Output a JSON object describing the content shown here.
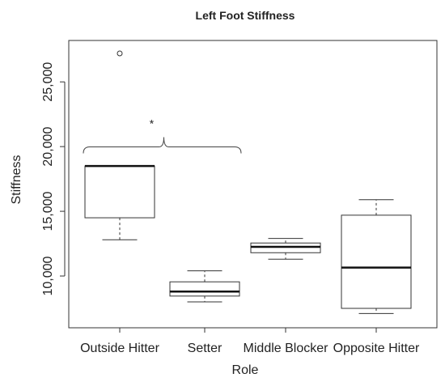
{
  "chart_data": {
    "type": "box",
    "title": "Left Foot Stiffness",
    "xlabel": "Role",
    "ylabel": "Stiffness",
    "categories": [
      "Outside Hitter",
      "Setter",
      "Middle Blocker",
      "Opposite Hitter"
    ],
    "yticks": [
      10000,
      15000,
      20000,
      25000
    ],
    "ytick_labels": [
      "10,000",
      "15,000",
      "20,000",
      "25,000"
    ],
    "ylim": [
      6000,
      28200
    ],
    "grid": false,
    "boxes": [
      {
        "category": "Outside Hitter",
        "whisker_low": 12800,
        "q1": 14500,
        "median": 18500,
        "q3": 18500,
        "whisker_high": 18500,
        "outliers": [
          27200
        ]
      },
      {
        "category": "Setter",
        "whisker_low": 8000,
        "q1": 8450,
        "median": 8800,
        "q3": 9550,
        "whisker_high": 10400,
        "outliers": []
      },
      {
        "category": "Middle Blocker",
        "whisker_low": 11300,
        "q1": 11800,
        "median": 12250,
        "q3": 12550,
        "whisker_high": 12900,
        "outliers": []
      },
      {
        "category": "Opposite Hitter",
        "whisker_low": 7100,
        "q1": 7500,
        "median": 10650,
        "q3": 14700,
        "whisker_high": 15900,
        "outliers": []
      }
    ],
    "annotation": {
      "text": "*",
      "bracket_from": "Outside Hitter",
      "bracket_to": "Setter",
      "y": 20100
    }
  }
}
